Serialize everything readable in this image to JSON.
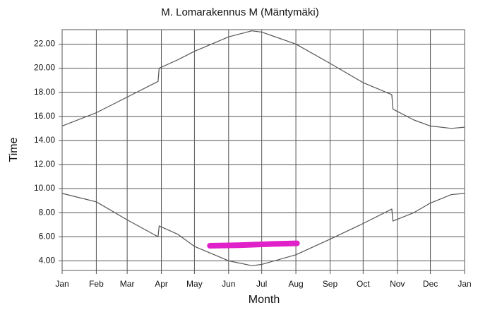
{
  "chart_data": {
    "type": "line",
    "title": "M. Lomarakennus M (Mäntymäki)",
    "x_label": "Month",
    "y_label": "Time",
    "xlim": [
      0,
      365
    ],
    "xticks": [
      {
        "value": 0,
        "label": "Jan"
      },
      {
        "value": 31,
        "label": "Feb"
      },
      {
        "value": 59,
        "label": "Mar"
      },
      {
        "value": 90,
        "label": "Apr"
      },
      {
        "value": 120,
        "label": "May"
      },
      {
        "value": 151,
        "label": "Jun"
      },
      {
        "value": 181,
        "label": "Jul"
      },
      {
        "value": 212,
        "label": "Aug"
      },
      {
        "value": 243,
        "label": "Sep"
      },
      {
        "value": 273,
        "label": "Oct"
      },
      {
        "value": 304,
        "label": "Nov"
      },
      {
        "value": 334,
        "label": "Dec"
      },
      {
        "value": 365,
        "label": "Jan"
      }
    ],
    "ylim": [
      3.2,
      23.2
    ],
    "yticks": [
      {
        "value": 4,
        "label": "4.00"
      },
      {
        "value": 6,
        "label": "6.00"
      },
      {
        "value": 8,
        "label": "8.00"
      },
      {
        "value": 10,
        "label": "10.00"
      },
      {
        "value": 12,
        "label": "12.00"
      },
      {
        "value": 14,
        "label": "14.00"
      },
      {
        "value": 16,
        "label": "16.00"
      },
      {
        "value": 18,
        "label": "18.00"
      },
      {
        "value": 20,
        "label": "20.00"
      },
      {
        "value": 22,
        "label": "22.00"
      }
    ],
    "grid": true,
    "series": [
      {
        "color": "#555555",
        "width": 1.2,
        "x": [
          0,
          31,
          59,
          87,
          88,
          105,
          120,
          151,
          172,
          181,
          212,
          243,
          273,
          299,
          300,
          319,
          334,
          353,
          365
        ],
        "values": [
          15.2,
          16.3,
          17.6,
          18.9,
          20.0,
          20.7,
          21.4,
          22.6,
          23.1,
          23.0,
          22.0,
          20.4,
          18.8,
          17.8,
          16.6,
          15.7,
          15.2,
          15.0,
          15.1
        ]
      },
      {
        "color": "#555555",
        "width": 1.2,
        "x": [
          0,
          31,
          59,
          87,
          88,
          105,
          120,
          151,
          172,
          181,
          212,
          243,
          273,
          299,
          300,
          319,
          334,
          353,
          365
        ],
        "values": [
          9.6,
          8.9,
          7.4,
          6.0,
          6.9,
          6.2,
          5.2,
          4.0,
          3.6,
          3.7,
          4.5,
          5.8,
          7.1,
          8.3,
          7.3,
          8.0,
          8.8,
          9.5,
          9.6
        ]
      },
      {
        "color": "#e020c8",
        "width": 8,
        "x": [
          134,
          160,
          190,
          213
        ],
        "values": [
          5.25,
          5.3,
          5.4,
          5.45
        ]
      }
    ]
  }
}
